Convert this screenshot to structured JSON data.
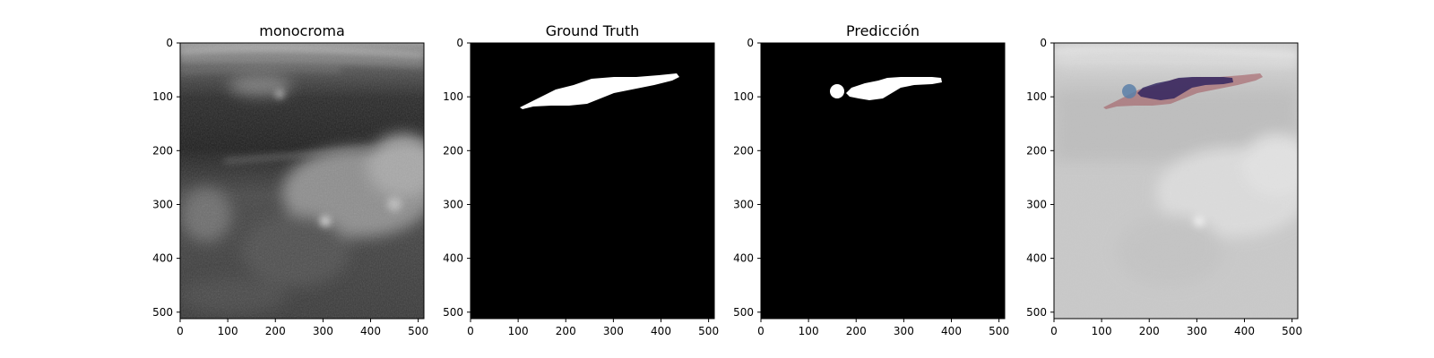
{
  "figure": {
    "panels": [
      {
        "id": "monocroma",
        "title": "monocroma",
        "kind": "ultrasound-grayscale"
      },
      {
        "id": "ground-truth",
        "title": "Ground Truth",
        "kind": "binary-mask"
      },
      {
        "id": "prediccion",
        "title": "Predicción",
        "kind": "binary-mask"
      },
      {
        "id": "overlay",
        "title": "",
        "kind": "overlay"
      }
    ],
    "x_ticks": [
      0,
      100,
      200,
      300,
      400,
      500
    ],
    "y_ticks": [
      0,
      100,
      200,
      300,
      400,
      500
    ],
    "image_size": [
      512,
      512
    ],
    "colors": {
      "mask_foreground": "#ffffff",
      "mask_background": "#000000",
      "overlay_ground_truth": "#a0525a",
      "overlay_prediction": "#2a1f5c",
      "overlay_extra_blob": "#5a7fa8"
    }
  }
}
